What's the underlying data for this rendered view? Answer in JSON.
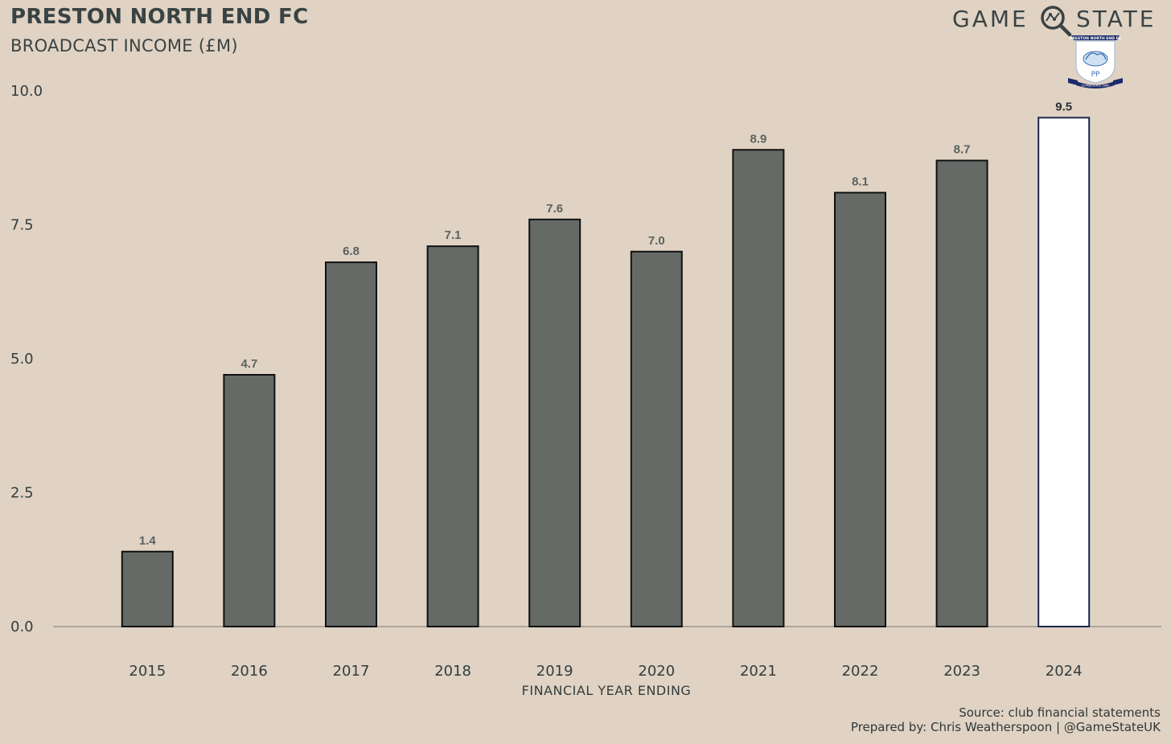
{
  "header": {
    "title": "PRESTON NORTH END FC",
    "subtitle": "BROADCAST INCOME (£M)"
  },
  "brand": {
    "word1": "GAME",
    "word2": "STATE",
    "icon": "magnifier-icon",
    "crest_icon": "club-crest-icon",
    "crest_top_text": "PRESTON NORTH END FC",
    "crest_initials": "PP",
    "crest_bottom_text": "ESTABLISHED 1880"
  },
  "footer": {
    "source": "Source: club financial statements",
    "credit": "Prepared by: Chris Weatherspoon | @GameStateUK"
  },
  "colors": {
    "background": "#e0d3c4",
    "bar": "#656a66",
    "highlight_bar": "#ffffff",
    "highlight_border": "#1b2550"
  },
  "chart_data": {
    "type": "bar",
    "title": "PRESTON NORTH END FC",
    "subtitle": "BROADCAST INCOME (£M)",
    "xlabel": "FINANCIAL YEAR ENDING",
    "ylabel": "",
    "categories": [
      "2015",
      "2016",
      "2017",
      "2018",
      "2019",
      "2020",
      "2021",
      "2022",
      "2023",
      "2024"
    ],
    "values": [
      1.4,
      4.7,
      6.8,
      7.1,
      7.6,
      7.0,
      8.9,
      8.1,
      8.7,
      9.5
    ],
    "value_labels": [
      "1.4",
      "4.7",
      "6.8",
      "7.1",
      "7.6",
      "7.0",
      "8.9",
      "8.1",
      "8.7",
      "9.5"
    ],
    "highlight_category": "2024",
    "ylim": [
      0,
      10
    ],
    "yticks": [
      0,
      2.5,
      5,
      7.5,
      10
    ],
    "ytick_labels": [
      "0.0",
      "2.5",
      "5.0",
      "7.5",
      "10.0"
    ],
    "grid": false,
    "legend": "none"
  }
}
